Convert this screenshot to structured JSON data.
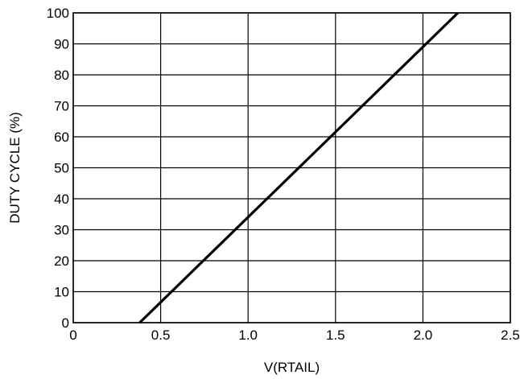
{
  "chart_data": {
    "type": "line",
    "title": "",
    "xlabel": "V(RTAIL)",
    "ylabel": "DUTY CYCLE (%)",
    "xlim": [
      0,
      2.5
    ],
    "ylim": [
      0,
      100
    ],
    "x_ticks": [
      0,
      0.5,
      1.0,
      1.5,
      2.0,
      2.5
    ],
    "x_tick_labels": [
      "0",
      "0.5",
      "1.0",
      "1.5",
      "2.0",
      "2.5"
    ],
    "y_ticks": [
      0,
      10,
      20,
      30,
      40,
      50,
      60,
      70,
      80,
      90,
      100
    ],
    "y_tick_labels": [
      "0",
      "10",
      "20",
      "30",
      "40",
      "50",
      "60",
      "70",
      "80",
      "90",
      "100"
    ],
    "grid": true,
    "series": [
      {
        "x": [
          0.38,
          2.2
        ],
        "y": [
          0,
          100
        ]
      }
    ]
  }
}
